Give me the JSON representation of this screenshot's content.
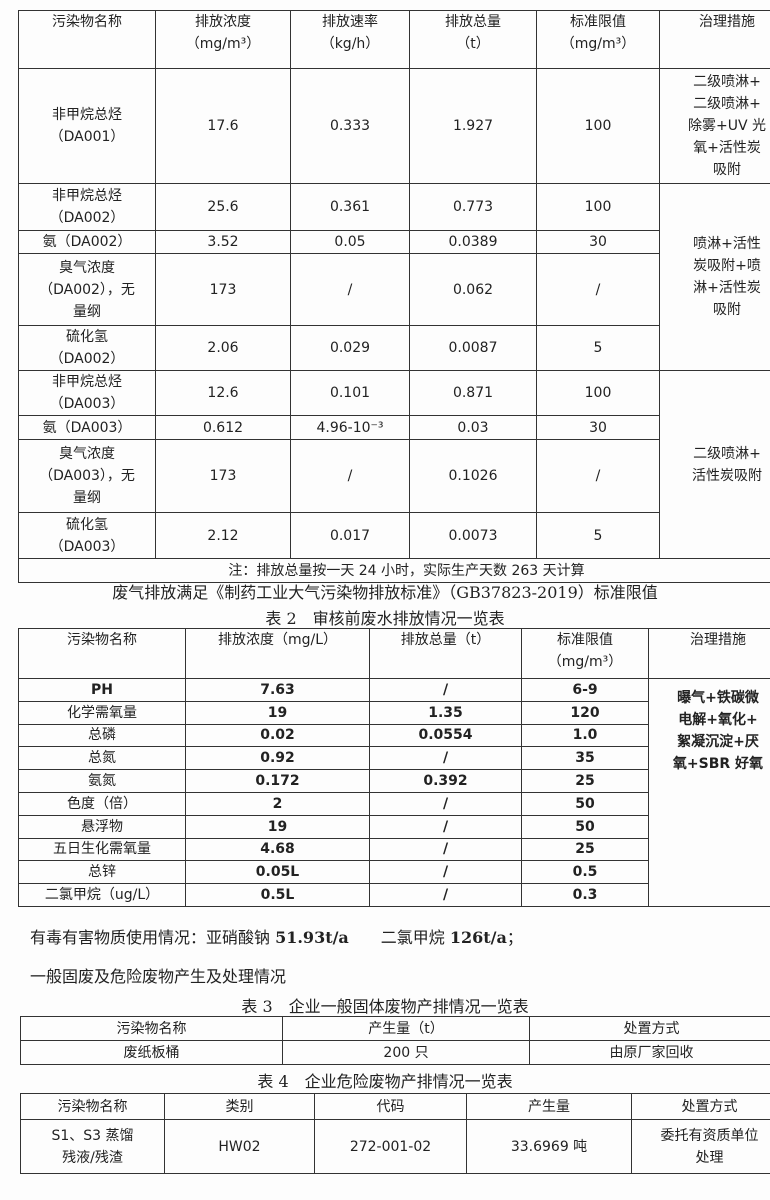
{
  "table1": {
    "headers": [
      "污染物名称",
      "排放浓度\n（mg/m³）",
      "排放速率\n（kg/h）",
      "排放总量\n（t）",
      "标准限值\n（mg/m³）",
      "治理措施"
    ],
    "rows": [
      {
        "name": "非甲烷总烃\n（DA001）",
        "concentration": "17.6",
        "rate": "0.333",
        "total": "1.927",
        "limit": "100",
        "measure": "二级喷淋+\n二级喷淋+\n除雾+UV 光\n氧+活性炭\n吸附"
      },
      {
        "name": "非甲烷总烃\n（DA002）",
        "concentration": "25.6",
        "rate": "0.361",
        "total": "0.773",
        "limit": "100",
        "measure": "喷淋+活性\n炭吸附+喷\n淋+活性炭\n吸附"
      },
      {
        "name": "氨（DA002）",
        "concentration": "3.52",
        "rate": "0.05",
        "total": "0.0389",
        "limit": "30"
      },
      {
        "name": "臭气浓度\n（DA002），无\n量纲",
        "concentration": "173",
        "rate": "/",
        "total": "0.062",
        "limit": "/"
      },
      {
        "name": "硫化氢\n（DA002）",
        "concentration": "2.06",
        "rate": "0.029",
        "total": "0.0087",
        "limit": "5"
      },
      {
        "name": "非甲烷总烃\n（DA003）",
        "concentration": "12.6",
        "rate": "0.101",
        "total": "0.871",
        "limit": "100",
        "measure": "二级喷淋+\n活性炭吸附"
      },
      {
        "name": "氨（DA003）",
        "concentration": "0.612",
        "rate": "4.96-10⁻³",
        "total": "0.03",
        "limit": "30"
      },
      {
        "name": "臭气浓度\n（DA003），无\n量纲",
        "concentration": "173",
        "rate": "/",
        "total": "0.1026",
        "limit": "/"
      },
      {
        "name": "硫化氢\n（DA003）",
        "concentration": "2.12",
        "rate": "0.017",
        "total": "0.0073",
        "limit": "5"
      }
    ],
    "note": "注：排放总量按一天 24 小时，实际生产天数 263 天计算"
  },
  "standard_line": "废气排放满足《制药工业大气污染物排放标准》（GB37823-2019）标准限值",
  "table2": {
    "title": "表 2　审核前废水排放情况一览表",
    "headers": [
      "污染物名称",
      "排放浓度（mg/L）",
      "排放总量（t）",
      "标准限值\n（mg/m³）",
      "治理措施"
    ],
    "measure": "曝气+铁碳微\n电解+氧化+\n絮凝沉淀+厌\n氧+SBR 好氧",
    "rows": [
      [
        "PH",
        "7.63",
        "/",
        "6-9"
      ],
      [
        "化学需氧量",
        "19",
        "1.35",
        "120"
      ],
      [
        "总磷",
        "0.02",
        "0.0554",
        "1.0"
      ],
      [
        "总氮",
        "0.92",
        "/",
        "35"
      ],
      [
        "氨氮",
        "0.172",
        "0.392",
        "25"
      ],
      [
        "色度（倍）",
        "2",
        "/",
        "50"
      ],
      [
        "悬浮物",
        "19",
        "/",
        "50"
      ],
      [
        "五日生化需氧量",
        "4.68",
        "/",
        "25"
      ],
      [
        "总锌",
        "0.05L",
        "/",
        "0.5"
      ],
      [
        "二氯甲烷（ug/L）",
        "0.5L",
        "/",
        "0.3"
      ]
    ]
  },
  "toxic_line": {
    "label": "有毒有害物质使用情况：亚硝酸钠 ",
    "v1": "51.93t/a",
    "mid": "　　二氯甲烷 ",
    "v2": "126t/a",
    "end": "；"
  },
  "waste_line": "一般固废及危险废物产生及处理情况",
  "table3": {
    "title": "表 3　企业一般固体废物产排情况一览表",
    "headers": [
      "污染物名称",
      "产生量（t）",
      "处置方式"
    ],
    "rows": [
      [
        "废纸板桶",
        "200 只",
        "由原厂家回收"
      ]
    ]
  },
  "table4": {
    "title": "表 4　企业危险废物产排情况一览表",
    "headers": [
      "污染物名称",
      "类别",
      "代码",
      "产生量",
      "处置方式"
    ],
    "rows": [
      [
        "S1、S3 蒸馏\n残液/残渣",
        "HW02",
        "272-001-02",
        "33.6969 吨",
        "委托有资质单位\n处理"
      ]
    ]
  }
}
